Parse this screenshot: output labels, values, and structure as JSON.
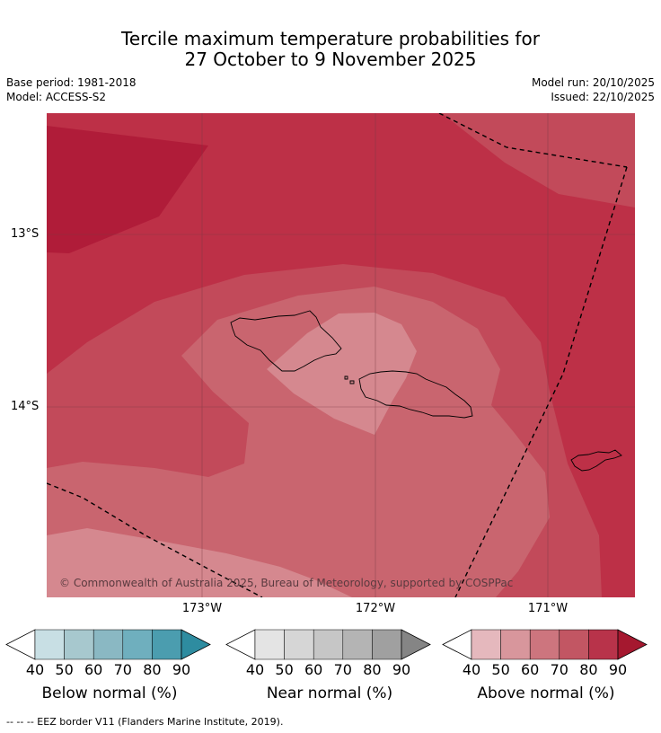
{
  "header": {
    "title_line1": "Tercile maximum temperature probabilities for",
    "title_line2": "27 October to 9 November 2025",
    "base_period": "Base period: 1981-2018",
    "model": "Model: ACCESS-S2",
    "model_run": "Model run: 20/10/2025",
    "issued": "Issued: 22/10/2025"
  },
  "map": {
    "lat_labels": [
      "13°S",
      "14°S"
    ],
    "lon_labels": [
      "173°W",
      "172°W",
      "171°W"
    ],
    "copyright": "© Commonwealth of Australia 2025, Bureau of Meteorology, supported by COSPPac",
    "colors": {
      "p90": "#b01c39",
      "p80": "#bd3047",
      "p75": "#c24a5a",
      "p70": "#c9656f",
      "p60": "#d5888f"
    }
  },
  "legends": [
    {
      "name": "Below normal (%)",
      "ticks": [
        "40",
        "50",
        "60",
        "70",
        "80",
        "90"
      ],
      "colors": [
        "#ffffff",
        "#c8dfe4",
        "#a7c8ce",
        "#8ab8c3",
        "#6fafbe",
        "#4b9daf",
        "#2e8ca0"
      ]
    },
    {
      "name": "Near normal (%)",
      "ticks": [
        "40",
        "50",
        "60",
        "70",
        "80",
        "90"
      ],
      "colors": [
        "#ffffff",
        "#e4e4e4",
        "#d6d6d6",
        "#c6c6c6",
        "#b4b4b4",
        "#a0a0a0",
        "#858585"
      ]
    },
    {
      "name": "Above normal (%)",
      "ticks": [
        "40",
        "50",
        "60",
        "70",
        "80",
        "90"
      ],
      "colors": [
        "#ffffff",
        "#e5b8bd",
        "#d8969c",
        "#cd757e",
        "#c25663",
        "#b8334a",
        "#a5182f"
      ]
    }
  ],
  "footer": "--  --  -- EEZ border V11 (Flanders Marine Institute, 2019)."
}
